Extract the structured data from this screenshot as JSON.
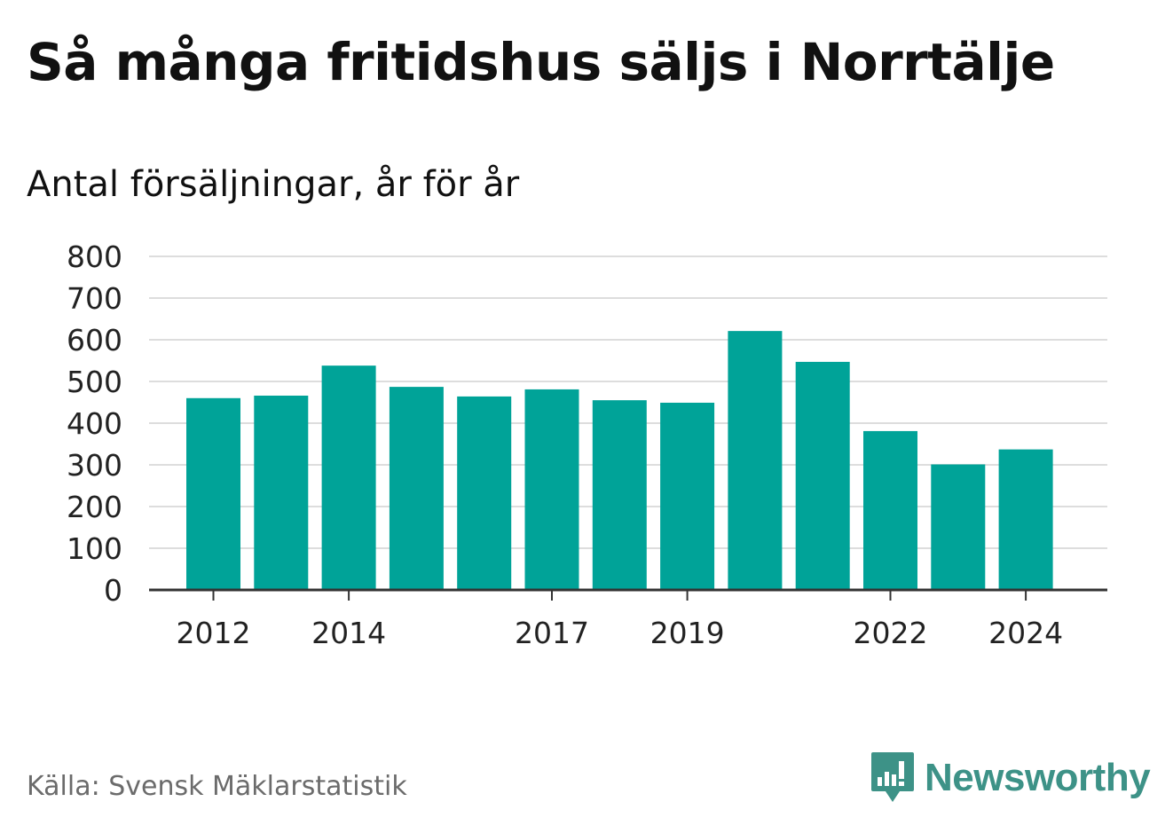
{
  "title": "Så många fritidshus säljs i Norrtälje",
  "subtitle": "Antal försäljningar, år för år",
  "source": "Källa: Svensk Mäklarstatistik",
  "brand": {
    "name": "Newsworthy",
    "icon": "newsworthy-chart-bubble-icon",
    "color": "#3d9287"
  },
  "colors": {
    "bar": "#00a398",
    "grid": "#dddddd",
    "axis": "#333333"
  },
  "chart_data": {
    "type": "bar",
    "title": "Så många fritidshus säljs i Norrtälje",
    "subtitle": "Antal försäljningar, år för år",
    "categories": [
      "2012",
      "2013",
      "2014",
      "2015",
      "2016",
      "2017",
      "2018",
      "2019",
      "2020",
      "2021",
      "2022",
      "2023",
      "2024"
    ],
    "values": [
      460,
      466,
      538,
      487,
      464,
      481,
      455,
      449,
      621,
      547,
      381,
      301,
      337
    ],
    "x_tick_labels": [
      "2012",
      "2014",
      "2017",
      "2019",
      "2022",
      "2024"
    ],
    "y_ticks": [
      0,
      100,
      200,
      300,
      400,
      500,
      600,
      700,
      800
    ],
    "ylim": [
      0,
      800
    ],
    "xlabel": "",
    "ylabel": "",
    "grid": true,
    "legend": "none"
  }
}
